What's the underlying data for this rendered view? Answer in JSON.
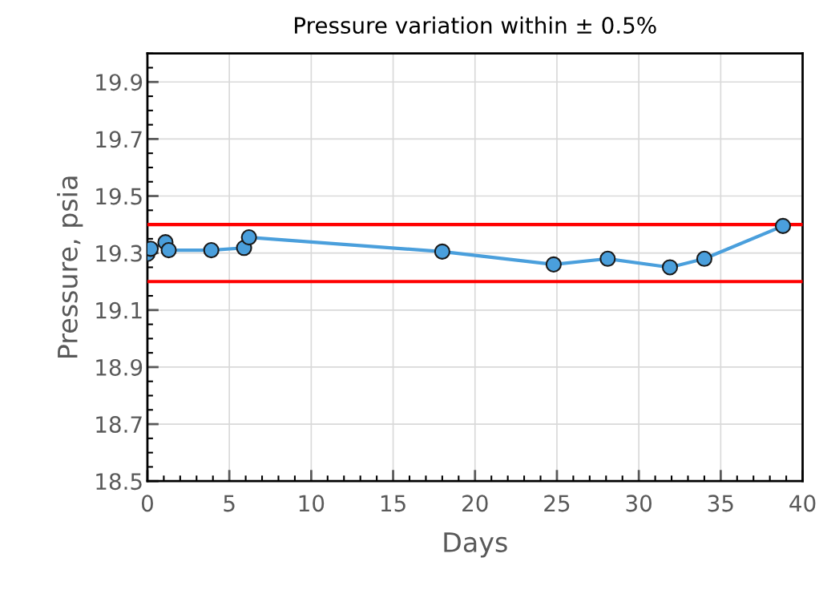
{
  "chart_data": {
    "type": "line",
    "title": "Pressure variation within ± 0.5%",
    "xlabel": "Days",
    "ylabel": "Pressure, psia",
    "x": [
      0,
      0.2,
      1.1,
      1.3,
      3.9,
      5.9,
      6.2,
      18.0,
      24.8,
      28.1,
      31.9,
      34.0,
      38.8
    ],
    "series": [
      {
        "color": "#4a9fdc",
        "values": [
          19.297,
          19.315,
          19.338,
          19.31,
          19.31,
          19.318,
          19.355,
          19.305,
          19.26,
          19.28,
          19.25,
          19.28,
          19.395
        ]
      }
    ],
    "xlim": [
      0,
      40
    ],
    "xticks": [
      0,
      5,
      10,
      15,
      20,
      25,
      30,
      35,
      40
    ],
    "ylim": [
      18.5,
      20.0
    ],
    "yticks": [
      18.5,
      18.7,
      18.9,
      19.1,
      19.3,
      19.5,
      19.7,
      19.9
    ],
    "ref_lines": [
      {
        "axis": "y",
        "value": 19.4,
        "color": "#ff0000"
      },
      {
        "axis": "y",
        "value": 19.2,
        "color": "#ff0000"
      }
    ],
    "grid": true,
    "marker": "circle",
    "line_style": "solid"
  }
}
